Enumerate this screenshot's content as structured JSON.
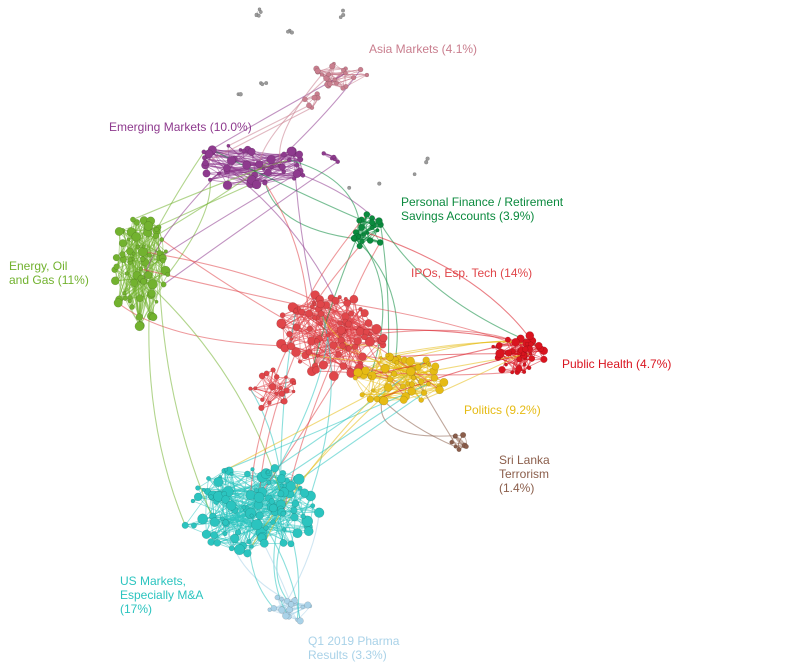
{
  "clusters": [
    {
      "id": "asia",
      "lines": [
        "Asia Markets (4.1%)"
      ],
      "color": "#c97e8e"
    },
    {
      "id": "emerging",
      "lines": [
        "Emerging Markets (10.0%)"
      ],
      "color": "#8e3a8e"
    },
    {
      "id": "personal-finance",
      "lines": [
        "Personal Finance / Retirement",
        "Savings Accounts  (3.9%)"
      ],
      "color": "#0b8a3e"
    },
    {
      "id": "energy",
      "lines": [
        "Energy, Oil",
        "and Gas (11%)"
      ],
      "color": "#72b22f"
    },
    {
      "id": "ipos",
      "lines": [
        "IPOs, Esp. Tech (14%)"
      ],
      "color": "#e0464a"
    },
    {
      "id": "public-health",
      "lines": [
        "Public Health (4.7%)"
      ],
      "color": "#d9141f"
    },
    {
      "id": "politics",
      "lines": [
        "Politics (9.2%)"
      ],
      "color": "#e6bb14"
    },
    {
      "id": "sri-lanka",
      "lines": [
        "Sri Lanka",
        "Terrorism",
        "(1.4%)"
      ],
      "color": "#8b5e4b"
    },
    {
      "id": "us-markets",
      "lines": [
        "US Markets,",
        "Especially M&A",
        "(17%)"
      ],
      "color": "#2bc4bf"
    },
    {
      "id": "pharma",
      "lines": [
        "Q1 2019 Pharma",
        "Results (3.3%)"
      ],
      "color": "#a9d2e8"
    }
  ],
  "isolates_color": "#9a9a9a"
}
